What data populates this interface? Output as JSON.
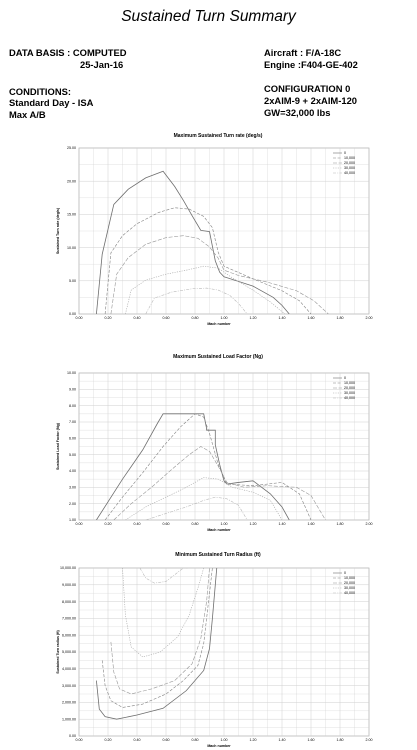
{
  "header": {
    "title": "Sustained Turn Summary",
    "data_basis_label": "DATA BASIS : COMPUTED",
    "date": "25-Jan-16",
    "aircraft": "Aircraft : F/A-18C",
    "engine": "Engine :F404-GE-402",
    "conditions_label": "CONDITIONS:",
    "conditions_day": "Standard Day - ISA",
    "conditions_power": "Max A/B",
    "configuration": "CONFIGURATION 0",
    "stores": "2xAIM-9 + 2xAIM-120",
    "gross_weight": "GW=32,000 lbs"
  },
  "chart_data": [
    {
      "type": "line",
      "title": "Maximum Sustained Turn rate (deg/s)",
      "xlabel": "Mach number",
      "ylabel": "Sustained Turn rate (deg/s)",
      "xlim": [
        0,
        2.0
      ],
      "ylim": [
        0,
        25
      ],
      "xticks": [
        "0.00",
        "0.20",
        "0.40",
        "0.60",
        "0.80",
        "1.00",
        "1.20",
        "1.40",
        "1.60",
        "1.80",
        "2.00"
      ],
      "yticks": [
        "0.00",
        "5.00",
        "10.00",
        "15.00",
        "20.00",
        "25.00"
      ],
      "legend_position": "top-right",
      "grid": true,
      "series": [
        {
          "name": "0",
          "x": [
            0.12,
            0.16,
            0.24,
            0.34,
            0.46,
            0.58,
            0.66,
            0.72,
            0.78,
            0.84,
            0.9,
            0.94,
            0.97,
            1.0,
            1.03,
            1.2,
            1.34,
            1.4,
            1.45
          ],
          "y": [
            0,
            9.0,
            16.5,
            18.8,
            20.5,
            21.5,
            19.2,
            17.1,
            14.8,
            12.6,
            12.4,
            8.0,
            6.3,
            5.6,
            5.4,
            4.2,
            2.5,
            1.3,
            0
          ]
        },
        {
          "name": "10,000",
          "x": [
            0.18,
            0.22,
            0.3,
            0.4,
            0.55,
            0.66,
            0.76,
            0.86,
            0.92,
            0.96,
            1.0,
            1.2,
            1.4,
            1.52,
            1.6
          ],
          "y": [
            0,
            9.2,
            11.8,
            13.6,
            15.3,
            16.0,
            15.8,
            14.7,
            13.0,
            9.3,
            7.2,
            5.3,
            3.5,
            2.0,
            0
          ]
        },
        {
          "name": "20,000",
          "x": [
            0.22,
            0.26,
            0.34,
            0.46,
            0.6,
            0.72,
            0.82,
            0.9,
            0.96,
            1.0,
            1.1,
            1.3,
            1.5,
            1.62,
            1.72
          ],
          "y": [
            0,
            6.0,
            8.5,
            10.5,
            11.5,
            11.8,
            11.4,
            10.1,
            8.4,
            6.6,
            5.8,
            4.8,
            3.5,
            2.0,
            0
          ]
        },
        {
          "name": "30,000",
          "x": [
            0.32,
            0.36,
            0.46,
            0.6,
            0.74,
            0.86,
            0.96,
            1.06,
            1.2,
            1.32,
            1.42
          ],
          "y": [
            0,
            3.6,
            5.1,
            6.0,
            6.6,
            7.2,
            6.9,
            5.4,
            3.6,
            1.8,
            0
          ]
        },
        {
          "name": "40,000",
          "x": [
            0.46,
            0.52,
            0.64,
            0.78,
            0.88,
            0.96,
            1.04,
            1.1,
            1.16
          ],
          "y": [
            0,
            2.4,
            3.3,
            3.8,
            3.9,
            3.6,
            2.8,
            1.6,
            0
          ]
        }
      ]
    },
    {
      "type": "line",
      "title": "Maximum Sustained Load Factor (Ng)",
      "xlabel": "Mach number",
      "ylabel": "Sustained Load Factor (Ng)",
      "xlim": [
        0,
        2.0
      ],
      "ylim": [
        1,
        10
      ],
      "xticks": [
        "0.00",
        "0.20",
        "0.40",
        "0.60",
        "0.80",
        "1.00",
        "1.20",
        "1.40",
        "1.60",
        "1.80",
        "2.00"
      ],
      "yticks": [
        "1.00",
        "2.00",
        "3.00",
        "4.00",
        "5.00",
        "6.00",
        "7.00",
        "8.00",
        "9.00",
        "10.00"
      ],
      "legend_position": "top-right",
      "grid": true,
      "series": [
        {
          "name": "0",
          "x": [
            0.12,
            0.3,
            0.44,
            0.54,
            0.58,
            0.86,
            0.88,
            0.88,
            0.94,
            0.94,
            0.97,
            1.0,
            1.02,
            1.1,
            1.2,
            1.32,
            1.4,
            1.45
          ],
          "y": [
            1.0,
            3.5,
            5.3,
            6.9,
            7.5,
            7.5,
            6.6,
            6.5,
            6.5,
            5.6,
            4.4,
            3.4,
            3.2,
            3.3,
            3.4,
            2.6,
            1.8,
            1.0
          ]
        },
        {
          "name": "10,000",
          "x": [
            0.18,
            0.3,
            0.44,
            0.58,
            0.7,
            0.8,
            0.86,
            0.9,
            0.96,
            1.02,
            1.2,
            1.4,
            1.52,
            1.6
          ],
          "y": [
            1.0,
            2.4,
            3.9,
            5.5,
            6.7,
            7.5,
            7.3,
            6.3,
            4.4,
            3.2,
            3.1,
            3.3,
            2.6,
            1.0
          ]
        },
        {
          "name": "20,000",
          "x": [
            0.24,
            0.36,
            0.5,
            0.64,
            0.76,
            0.84,
            0.9,
            0.96,
            1.02,
            1.14,
            1.3,
            1.5,
            1.6,
            1.7
          ],
          "y": [
            1.0,
            2.0,
            3.0,
            4.1,
            5.0,
            5.5,
            5.2,
            4.3,
            3.3,
            3.0,
            3.1,
            3.0,
            2.5,
            1.0
          ]
        },
        {
          "name": "30,000",
          "x": [
            0.32,
            0.46,
            0.6,
            0.74,
            0.86,
            0.96,
            1.06,
            1.2,
            1.32,
            1.4
          ],
          "y": [
            1.0,
            1.8,
            2.4,
            3.0,
            3.6,
            3.5,
            3.0,
            2.7,
            2.2,
            1.0
          ]
        },
        {
          "name": "40,000",
          "x": [
            0.46,
            0.6,
            0.74,
            0.86,
            0.94,
            1.02,
            1.1,
            1.16
          ],
          "y": [
            1.0,
            1.4,
            1.8,
            2.2,
            2.4,
            2.3,
            1.9,
            1.0
          ]
        }
      ]
    },
    {
      "type": "line",
      "title": "Minimum Sustained Turn Radius (ft)",
      "xlabel": "Mach number",
      "ylabel": "Sustained Turn radius (ft)",
      "xlim": [
        0,
        2.0
      ],
      "ylim": [
        0,
        10000
      ],
      "xticks": [
        "0.00",
        "0.20",
        "0.40",
        "0.60",
        "0.80",
        "1.00",
        "1.20",
        "1.40",
        "1.60",
        "1.80",
        "2.00"
      ],
      "yticks": [
        "0.00",
        "1,000.00",
        "2,000.00",
        "3,000.00",
        "4,000.00",
        "5,000.00",
        "6,000.00",
        "7,000.00",
        "8,000.00",
        "9,000.00",
        "10,000.00"
      ],
      "legend_position": "top-right",
      "grid": true,
      "series": [
        {
          "name": "0",
          "x": [
            0.12,
            0.14,
            0.18,
            0.26,
            0.4,
            0.58,
            0.74,
            0.86,
            0.9,
            0.92,
            0.94,
            0.95
          ],
          "y": [
            3300,
            1600,
            1150,
            1000,
            1250,
            1650,
            2700,
            3900,
            5200,
            7000,
            9000,
            10000
          ]
        },
        {
          "name": "10,000",
          "x": [
            0.16,
            0.18,
            0.22,
            0.3,
            0.44,
            0.6,
            0.72,
            0.82,
            0.86,
            0.88,
            0.9,
            0.92
          ],
          "y": [
            4500,
            3000,
            2100,
            1700,
            1900,
            2500,
            3300,
            4200,
            5500,
            7000,
            8500,
            10000
          ]
        },
        {
          "name": "20,000",
          "x": [
            0.22,
            0.24,
            0.28,
            0.36,
            0.5,
            0.66,
            0.78,
            0.84,
            0.88,
            0.9
          ],
          "y": [
            5600,
            3800,
            2800,
            2500,
            2800,
            3300,
            4300,
            5800,
            8000,
            10000
          ]
        },
        {
          "name": "30,000",
          "x": [
            0.3,
            0.32,
            0.36,
            0.44,
            0.56,
            0.68,
            0.76,
            0.82,
            0.86
          ],
          "y": [
            10000,
            7200,
            5300,
            4700,
            5000,
            5900,
            7200,
            8800,
            10000
          ]
        },
        {
          "name": "40,000",
          "x": [
            0.42,
            0.46,
            0.52,
            0.6,
            0.66,
            0.72,
            0.75
          ],
          "y": [
            10000,
            9400,
            9100,
            9200,
            9600,
            10000,
            10000
          ]
        }
      ]
    }
  ],
  "styles": {
    "series_colors": [
      "#6e6e6e",
      "#808080",
      "#969696",
      "#a6a6a6",
      "#b8b8b8"
    ],
    "series_dashes": [
      "",
      "3,1.6",
      "4,1.6",
      "1.2,1.2",
      "3,1.2,1,1.2"
    ],
    "grid_color": "#cfcfcf",
    "frame_color": "#8a8a8a"
  }
}
